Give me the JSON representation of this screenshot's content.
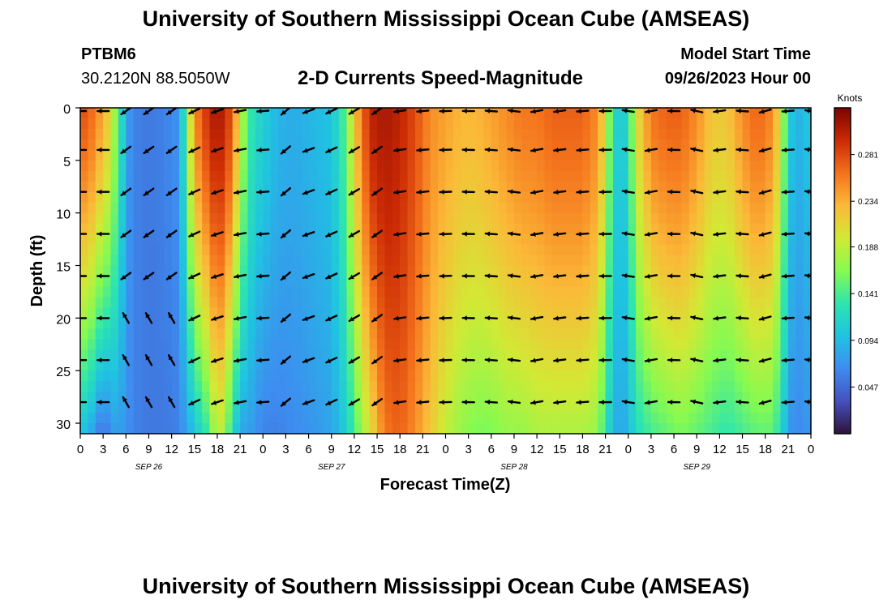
{
  "header": {
    "title": "University of Southern Mississippi Ocean Cube (AMSEAS)",
    "station": "PTBM6",
    "coords": "30.2120N  88.5050W",
    "subtitle": "2-D Currents Speed-Magnitude",
    "model_label": "Model Start Time",
    "model_time": "09/26/2023 Hour 00"
  },
  "footer": {
    "title": "University of Southern Mississippi Ocean Cube (AMSEAS)"
  },
  "chart_data": {
    "type": "heatmap",
    "title": "2-D Currents Speed-Magnitude",
    "xlabel": "Forecast Time(Z)",
    "ylabel": "Depth (ft)",
    "x_tick_labels": [
      "0",
      "3",
      "6",
      "9",
      "12",
      "15",
      "18",
      "21",
      "0",
      "3",
      "6",
      "9",
      "12",
      "15",
      "18",
      "21",
      "0",
      "3",
      "6",
      "9",
      "12",
      "15",
      "18",
      "21",
      "0",
      "3",
      "6",
      "9",
      "12",
      "15",
      "18",
      "21",
      "0"
    ],
    "x_hours": [
      0,
      3,
      6,
      9,
      12,
      15,
      18,
      21,
      24,
      27,
      30,
      33,
      36,
      39,
      42,
      45,
      48,
      51,
      54,
      57,
      60,
      63,
      66,
      69,
      72,
      75,
      78,
      81,
      84,
      87,
      90,
      93,
      96
    ],
    "date_labels": [
      {
        "text": "SEP 26",
        "hour": 9
      },
      {
        "text": "SEP 27",
        "hour": 33
      },
      {
        "text": "SEP 28",
        "hour": 57
      },
      {
        "text": "SEP 29",
        "hour": 81
      }
    ],
    "xlim": [
      0,
      96
    ],
    "ylim": [
      31,
      0
    ],
    "y_ticks": [
      0,
      5,
      10,
      15,
      20,
      25,
      30
    ],
    "colorbar": {
      "label": "Knots",
      "ticks": [
        0.047,
        0.094,
        0.141,
        0.188,
        0.234,
        0.281
      ],
      "range": [
        0,
        0.328
      ]
    },
    "arrow_depths": [
      0,
      4,
      8,
      12,
      16,
      20,
      24,
      28
    ],
    "speed_profile": [
      [
        0,
        0.27,
        0.1
      ],
      [
        1,
        0.28,
        0.09
      ],
      [
        2,
        0.25,
        0.07
      ],
      [
        3,
        0.24,
        0.045
      ],
      [
        4,
        0.2,
        0.07
      ],
      [
        5,
        0.15,
        0.08
      ],
      [
        6,
        0.08,
        0.07
      ],
      [
        7,
        0.06,
        0.06
      ],
      [
        9,
        0.055,
        0.055
      ],
      [
        11,
        0.06,
        0.055
      ],
      [
        13,
        0.07,
        0.06
      ],
      [
        14,
        0.16,
        0.08
      ],
      [
        15,
        0.25,
        0.1
      ],
      [
        17,
        0.3,
        0.14
      ],
      [
        18,
        0.31,
        0.2
      ],
      [
        19,
        0.3,
        0.17
      ],
      [
        20,
        0.27,
        0.12
      ],
      [
        21,
        0.2,
        0.08
      ],
      [
        22,
        0.14,
        0.08
      ],
      [
        23,
        0.12,
        0.07
      ],
      [
        24,
        0.11,
        0.06
      ],
      [
        26,
        0.09,
        0.06
      ],
      [
        28,
        0.085,
        0.065
      ],
      [
        30,
        0.09,
        0.07
      ],
      [
        33,
        0.1,
        0.08
      ],
      [
        35,
        0.15,
        0.11
      ],
      [
        36,
        0.22,
        0.14
      ],
      [
        38,
        0.3,
        0.2
      ],
      [
        40,
        0.31,
        0.26
      ],
      [
        42,
        0.3,
        0.27
      ],
      [
        44,
        0.28,
        0.25
      ],
      [
        46,
        0.25,
        0.22
      ],
      [
        48,
        0.24,
        0.19
      ],
      [
        50,
        0.23,
        0.17
      ],
      [
        52,
        0.23,
        0.16
      ],
      [
        54,
        0.24,
        0.16
      ],
      [
        56,
        0.25,
        0.17
      ],
      [
        58,
        0.26,
        0.17
      ],
      [
        60,
        0.26,
        0.18
      ],
      [
        62,
        0.27,
        0.18
      ],
      [
        64,
        0.27,
        0.18
      ],
      [
        66,
        0.27,
        0.18
      ],
      [
        68,
        0.25,
        0.17
      ],
      [
        69,
        0.2,
        0.13
      ],
      [
        70,
        0.12,
        0.09
      ],
      [
        71,
        0.1,
        0.08
      ],
      [
        72,
        0.12,
        0.09
      ],
      [
        73,
        0.2,
        0.12
      ],
      [
        75,
        0.26,
        0.14
      ],
      [
        77,
        0.27,
        0.15
      ],
      [
        79,
        0.27,
        0.16
      ],
      [
        81,
        0.25,
        0.15
      ],
      [
        83,
        0.22,
        0.14
      ],
      [
        85,
        0.22,
        0.13
      ],
      [
        87,
        0.25,
        0.14
      ],
      [
        89,
        0.27,
        0.15
      ],
      [
        91,
        0.25,
        0.15
      ],
      [
        92,
        0.2,
        0.12
      ],
      [
        93,
        0.12,
        0.08
      ],
      [
        94,
        0.08,
        0.06
      ],
      [
        95,
        0.1,
        0.07
      ],
      [
        96,
        0.1,
        0.07
      ]
    ]
  }
}
